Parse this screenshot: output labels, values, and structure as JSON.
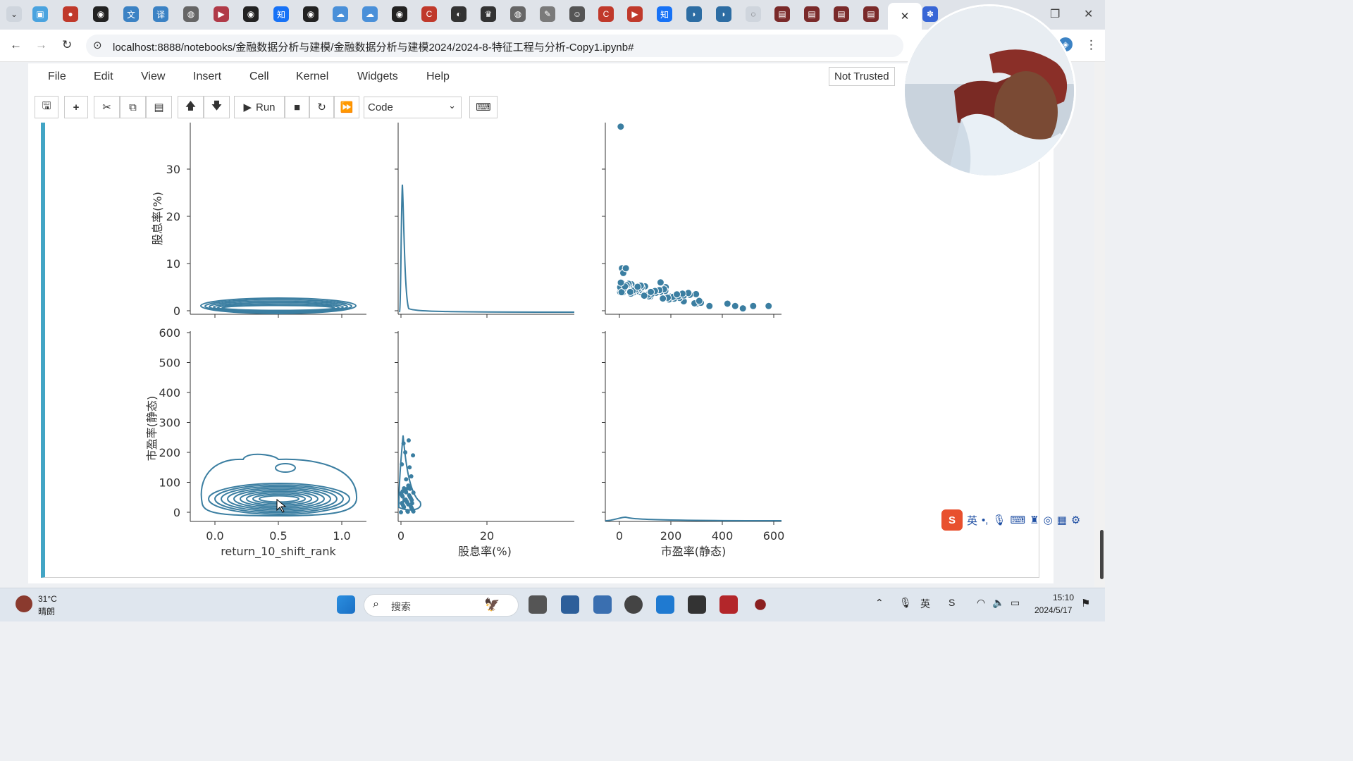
{
  "browser": {
    "url": "localhost:8888/notebooks/金融数据分析与建模/金融数据分析与建模2024/2024-8-特征工程与分析-Copy1.ipynb#",
    "active_tab_close": "✕"
  },
  "jupyter": {
    "menu": [
      "File",
      "Edit",
      "View",
      "Insert",
      "Cell",
      "Kernel",
      "Widgets",
      "Help"
    ],
    "trust_status": "Not Trusted",
    "run_label": "Run",
    "cell_type": "Code"
  },
  "chart_data": [
    {
      "type": "heatmap",
      "panel": "row1-col1",
      "note": "kde contour",
      "x": "return_10_shift_rank",
      "y": "股息率(%)",
      "shape": "flat band near 0 across 0.0–1.0"
    },
    {
      "type": "line",
      "panel": "row1-col2",
      "x": "股息率(%)",
      "peak_x": 0.5,
      "peak_density_y": 27
    },
    {
      "type": "scatter",
      "panel": "row1-col3",
      "x": "市盈率(静态)",
      "y": "股息率(%)",
      "points": [
        [
          5,
          39
        ],
        [
          10,
          9
        ],
        [
          15,
          8
        ],
        [
          25,
          9
        ],
        [
          60,
          5
        ],
        [
          80,
          4
        ],
        [
          120,
          3
        ],
        [
          160,
          6
        ],
        [
          180,
          5
        ],
        [
          200,
          3
        ],
        [
          250,
          2
        ],
        [
          300,
          1.5
        ],
        [
          350,
          1
        ],
        [
          420,
          1.5
        ],
        [
          450,
          1
        ],
        [
          480,
          0.5
        ],
        [
          520,
          1
        ],
        [
          580,
          1
        ]
      ]
    },
    {
      "type": "heatmap",
      "panel": "row2-col1",
      "note": "kde contour",
      "x": "return_10_shift_rank",
      "y": "市盈率(静态)",
      "shape": "dense rings 0–200 across 0.0–1.0"
    },
    {
      "type": "scatter",
      "panel": "row2-col2",
      "x": "股息率(%)",
      "y": "市盈率(静态)",
      "shape": "cluster at x≈0–3, y 0–250"
    },
    {
      "type": "line",
      "panel": "row2-col3",
      "x": "市盈率(静态)",
      "shape": "small density bump near 20"
    }
  ],
  "axes": {
    "row1_ylabel": "股息率(%)",
    "row2_ylabel": "市盈率(静态)",
    "row1_yticks": [
      "0",
      "10",
      "20",
      "30"
    ],
    "row2_yticks": [
      "0",
      "100",
      "200",
      "300",
      "400",
      "500",
      "600"
    ],
    "col1_xticks": [
      "0.0",
      "0.5",
      "1.0"
    ],
    "col2_xticks": [
      "0",
      "20"
    ],
    "col3_xticks": [
      "0",
      "200",
      "400",
      "600"
    ],
    "col1_xlabel": "return_10_shift_rank",
    "col2_xlabel": "股息率(%)",
    "col3_xlabel": "市盈率(静态)"
  },
  "colors": {
    "series": "#3b7ea1",
    "cell_bar": "#42a5c5"
  },
  "ime": {
    "lang": "英"
  },
  "taskbar": {
    "weather_temp": "31°C",
    "weather_desc": "晴朗",
    "search_label": "搜索",
    "time": "15:10",
    "date": "2024/5/17"
  }
}
